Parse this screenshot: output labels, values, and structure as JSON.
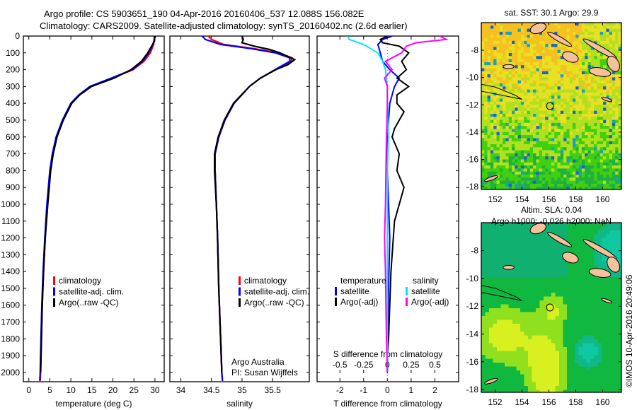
{
  "header": {
    "line1": "Argo profile: CS 5903651_190 04-Apr-2016 20160406_537 12.088S 156.082E",
    "line2": "Climatology: CARS2009. Satellite-adjusted climatology: synTS_20160402.nc (2.6d earlier)"
  },
  "colors": {
    "climatology": "#ff0000",
    "satellite": "#0000ff",
    "argo": "#000000",
    "sal_satellite": "#00e5ff",
    "sal_argo": "#ff00ff",
    "land": "#f5c09a"
  },
  "chart_data": [
    {
      "type": "line",
      "title": "",
      "xlabel": "temperature (deg C)",
      "ylabel": "",
      "xlim": [
        -1.3,
        32.2
      ],
      "ylim": [
        2055,
        0
      ],
      "xticks": [
        "0",
        "5",
        "10",
        "15",
        "20",
        "25",
        "30"
      ],
      "yticks": [
        "0",
        "100",
        "200",
        "300",
        "400",
        "500",
        "600",
        "700",
        "800",
        "900",
        "1000",
        "1100",
        "1200",
        "1300",
        "1400",
        "1500",
        "1600",
        "1700",
        "1800",
        "1900",
        "2000"
      ],
      "legend": [
        "climatology",
        "satellite-adj. clim.",
        "Argo(..raw -QC)"
      ],
      "series": [
        {
          "name": "climatology",
          "depth": [
            0,
            50,
            100,
            150,
            200,
            250,
            300,
            350,
            400,
            500,
            600,
            700,
            800,
            1000,
            1200,
            1400,
            1600,
            1800,
            2000,
            2050
          ],
          "values": [
            29.9,
            29.7,
            28.9,
            27.4,
            24.8,
            19.8,
            14.6,
            12,
            10.1,
            8.1,
            6.6,
            5.7,
            5.1,
            4.4,
            3.9,
            3.5,
            3.2,
            3,
            2.8,
            2.7
          ]
        },
        {
          "name": "satellite-adj. clim.",
          "depth": [
            0,
            50,
            100,
            150,
            200,
            250,
            300,
            350,
            400,
            500,
            600,
            700,
            800,
            1000,
            1200,
            1400,
            1600,
            1800,
            2000,
            2050
          ],
          "values": [
            30.1,
            29.5,
            28.5,
            27.1,
            24.6,
            19.6,
            14.5,
            11.9,
            10,
            8,
            6.5,
            5.6,
            5,
            4.3,
            3.8,
            3.4,
            3.1,
            2.9,
            2.7,
            2.6
          ]
        },
        {
          "name": "Argo(..raw -QC)",
          "depth": [
            0,
            30,
            60,
            100,
            150,
            200,
            250,
            300,
            350,
            400,
            500,
            600,
            700,
            800,
            1000,
            1200,
            1400,
            1600,
            1800,
            2000
          ],
          "values": [
            29.9,
            29.9,
            29.2,
            28.3,
            26.8,
            24.3,
            20.3,
            14.9,
            12.1,
            10.2,
            8.2,
            6.7,
            5.8,
            5.2,
            4.5,
            3.9,
            3.5,
            3.2,
            3,
            2.8
          ]
        }
      ]
    },
    {
      "type": "line",
      "xlabel": "salinity",
      "xlim": [
        33.82,
        36.1
      ],
      "ylim": [
        2055,
        0
      ],
      "xticks": [
        "34",
        "34.5",
        "35",
        "35.5"
      ],
      "legend": [
        "climatology",
        "satellite-adj. clim.",
        "Argo(..raw -QC)"
      ],
      "annotation": [
        "Argo Australia",
        "PI: Susan Wijffels"
      ],
      "series": [
        {
          "name": "climatology",
          "depth": [
            0,
            20,
            50,
            75,
            100,
            130,
            150,
            200,
            250,
            300,
            400,
            500,
            600,
            700,
            800,
            1000,
            1200,
            1500,
            1800,
            2000,
            2050
          ],
          "values": [
            34.45,
            34.5,
            34.7,
            35.2,
            35.6,
            35.82,
            35.8,
            35.55,
            35.3,
            35.12,
            34.87,
            34.72,
            34.62,
            34.56,
            34.56,
            34.58,
            34.6,
            34.62,
            34.65,
            34.67,
            34.68
          ]
        },
        {
          "name": "satellite-adj. clim.",
          "depth": [
            0,
            20,
            50,
            75,
            100,
            130,
            150,
            200,
            250,
            300,
            400,
            500,
            600,
            700,
            800,
            1000,
            1200,
            1500,
            1800,
            2000,
            2050
          ],
          "values": [
            34.35,
            34.4,
            34.65,
            35.15,
            35.55,
            35.78,
            35.78,
            35.54,
            35.3,
            35.12,
            34.87,
            34.72,
            34.62,
            34.56,
            34.56,
            34.58,
            34.6,
            34.62,
            34.65,
            34.67,
            34.68
          ]
        },
        {
          "name": "Argo(..raw -QC)",
          "depth": [
            0,
            20,
            40,
            60,
            80,
            100,
            140,
            170,
            200,
            250,
            300,
            400,
            500,
            600,
            700,
            800,
            1000,
            1200,
            1500,
            1800,
            2000
          ],
          "values": [
            35.0,
            35.02,
            35.0,
            35.2,
            35.45,
            35.62,
            35.86,
            35.75,
            35.55,
            35.3,
            35.12,
            34.86,
            34.71,
            34.61,
            34.55,
            34.55,
            34.58,
            34.6,
            34.62,
            34.65,
            34.67
          ]
        }
      ]
    },
    {
      "type": "line",
      "xlabel": "T difference from climatology",
      "xlabel2": "S difference from climatology",
      "xlim": [
        -2.96,
        3.0
      ],
      "xlim_s": [
        -0.74,
        0.75
      ],
      "xticks": [
        "-2",
        "-1",
        "0",
        "1",
        "2"
      ],
      "xticks_s": [
        "-0.5",
        "-0.25",
        "0",
        "0.25",
        "0.5"
      ],
      "legend": {
        "temperature_title": "temperature",
        "salinity_title": "salinity",
        "t_sat": "satellite",
        "t_argo": "Argo(-adj)",
        "s_sat": "satellite",
        "s_argo": "Argo(-adj)"
      },
      "series": [
        {
          "name": "T satellite",
          "unit": "T",
          "depth": [
            0,
            20,
            50,
            100,
            150,
            200,
            250,
            300,
            400,
            500,
            600,
            800,
            1000,
            1200,
            1500,
            1800,
            2000
          ],
          "values": [
            0.2,
            -0.2,
            -0.4,
            -0.3,
            -0.2,
            0.1,
            0.5,
            0.3,
            0.1,
            0.05,
            0,
            0,
            0.05,
            0.1,
            0.05,
            0,
            0
          ]
        },
        {
          "name": "T Argo(-adj)",
          "unit": "T",
          "depth": [
            0,
            20,
            40,
            60,
            100,
            150,
            200,
            250,
            300,
            350,
            400,
            450,
            500,
            550,
            600,
            700,
            800,
            900,
            1000,
            1100,
            1200,
            1400,
            1600,
            1800,
            1900,
            2000
          ],
          "values": [
            0,
            -0.3,
            -0.2,
            0.5,
            0.9,
            0.6,
            0.8,
            0.4,
            0.9,
            0.4,
            0.4,
            0.7,
            0.5,
            0.3,
            0.2,
            0.5,
            0.4,
            0.7,
            0.5,
            0.3,
            0.25,
            0.15,
            0.1,
            0.05,
            0,
            0
          ]
        },
        {
          "name": "S satellite",
          "unit": "S",
          "depth": [
            0,
            20,
            50,
            100,
            150,
            200,
            300,
            400,
            600,
            800,
            1000,
            1500,
            2000
          ],
          "values": [
            -0.42,
            -0.4,
            -0.25,
            -0.1,
            -0.05,
            -0.02,
            0,
            0,
            0.01,
            0,
            0,
            0,
            0
          ]
        },
        {
          "name": "S Argo(-adj)",
          "unit": "S",
          "depth": [
            0,
            20,
            40,
            60,
            100,
            150,
            200,
            250,
            300,
            400,
            600,
            1000,
            1200,
            1400,
            1800,
            2000
          ],
          "values": [
            0.55,
            0.62,
            0.3,
            0.2,
            0.15,
            -0.02,
            0.05,
            -0.03,
            0,
            0,
            -0.01,
            -0.02,
            -0.03,
            -0.02,
            -0.01,
            0
          ]
        }
      ]
    },
    {
      "type": "heatmap",
      "title": "sat. SST: 30.1 Argo: 29.9",
      "lonlim": [
        150.97,
        161.4
      ],
      "latlim": [
        -18.2,
        -5.98
      ],
      "xticks": [
        "152",
        "154",
        "156",
        "158",
        "160"
      ],
      "yticks": [
        "-8",
        "-10",
        "-12",
        "-14",
        "-16",
        "-18"
      ],
      "profile_position": {
        "lon": 156.082,
        "lat": -12.088
      }
    },
    {
      "type": "heatmap",
      "title": "Altim. SLA: 0.04",
      "subtitle": "Argo h1000: -0.026 h2000: NaN",
      "lonlim": [
        150.97,
        161.4
      ],
      "latlim": [
        -18.2,
        -5.98
      ],
      "xticks": [
        "152",
        "154",
        "156",
        "158",
        "160"
      ],
      "yticks": [
        "-8",
        "-10",
        "-12",
        "-14",
        "-16",
        "-18"
      ],
      "profile_position": {
        "lon": 156.082,
        "lat": -12.088
      }
    }
  ],
  "credit": "©IMOS 10-Apr-2016 20:49:06"
}
